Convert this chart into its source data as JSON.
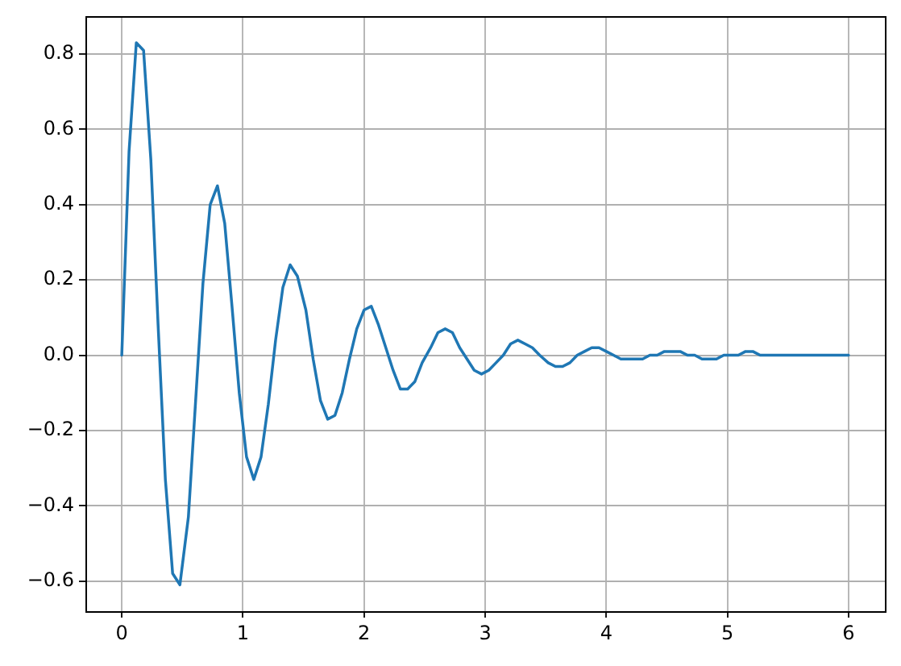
{
  "chart_data": {
    "type": "line",
    "color": "#1f77b4",
    "x": [
      0,
      0.06,
      0.12,
      0.18,
      0.24,
      0.3,
      0.36,
      0.42,
      0.48,
      0.55,
      0.61,
      0.67,
      0.73,
      0.79,
      0.85,
      0.91,
      0.97,
      1.03,
      1.09,
      1.15,
      1.21,
      1.27,
      1.33,
      1.39,
      1.45,
      1.52,
      1.58,
      1.64,
      1.7,
      1.76,
      1.82,
      1.88,
      1.94,
      2.0,
      2.06,
      2.12,
      2.18,
      2.24,
      2.3,
      2.36,
      2.42,
      2.48,
      2.55,
      2.61,
      2.67,
      2.73,
      2.79,
      2.85,
      2.91,
      2.97,
      3.03,
      3.09,
      3.15,
      3.21,
      3.27,
      3.33,
      3.39,
      3.45,
      3.52,
      3.58,
      3.64,
      3.7,
      3.76,
      3.82,
      3.88,
      3.94,
      4.0,
      4.06,
      4.12,
      4.18,
      4.24,
      4.3,
      4.36,
      4.42,
      4.48,
      4.55,
      4.61,
      4.67,
      4.73,
      4.79,
      4.85,
      4.91,
      4.97,
      5.03,
      5.09,
      5.15,
      5.21,
      5.27,
      5.33,
      5.39,
      5.45,
      5.52,
      5.58,
      5.64,
      5.7,
      5.76,
      5.82,
      5.88,
      5.94,
      6.0
    ],
    "values": [
      0,
      0.54,
      0.83,
      0.81,
      0.52,
      0.08,
      -0.33,
      -0.58,
      -0.61,
      -0.43,
      -0.12,
      0.19,
      0.4,
      0.45,
      0.35,
      0.13,
      -0.1,
      -0.27,
      -0.33,
      -0.27,
      -0.13,
      0.04,
      0.18,
      0.24,
      0.21,
      0.12,
      -0.01,
      -0.12,
      -0.17,
      -0.16,
      -0.1,
      -0.01,
      0.07,
      0.12,
      0.13,
      0.08,
      0.02,
      -0.04,
      -0.09,
      -0.09,
      -0.07,
      -0.02,
      0.02,
      0.06,
      0.07,
      0.06,
      0.02,
      -0.01,
      -0.04,
      -0.05,
      -0.04,
      -0.02,
      0,
      0.03,
      0.04,
      0.03,
      0.02,
      0,
      -0.02,
      -0.03,
      -0.03,
      -0.02,
      0,
      0.01,
      0.02,
      0.02,
      0.01,
      0,
      -0.01,
      -0.01,
      -0.01,
      -0.01,
      0,
      0,
      0.01,
      0.01,
      0.01,
      0,
      0,
      -0.01,
      -0.01,
      -0.01,
      0,
      0,
      0,
      0.01,
      0.01,
      0,
      0,
      0,
      0,
      0,
      0,
      0,
      0,
      0,
      0,
      0,
      0,
      0
    ],
    "xlim": [
      -0.3,
      6.3
    ],
    "xticks": [
      0,
      1,
      2,
      3,
      4,
      5,
      6
    ],
    "ylim": [
      -0.68,
      0.9
    ],
    "yticks": [
      {
        "value": -0.6,
        "label": "−0.6"
      },
      {
        "value": -0.4,
        "label": "−0.4"
      },
      {
        "value": -0.2,
        "label": "−0.2"
      },
      {
        "value": 0,
        "label": "0.0"
      },
      {
        "value": 0.2,
        "label": "0.2"
      },
      {
        "value": 0.4,
        "label": "0.4"
      },
      {
        "value": 0.6,
        "label": "0.6"
      },
      {
        "value": 0.8,
        "label": "0.8"
      }
    ],
    "grid": true
  }
}
